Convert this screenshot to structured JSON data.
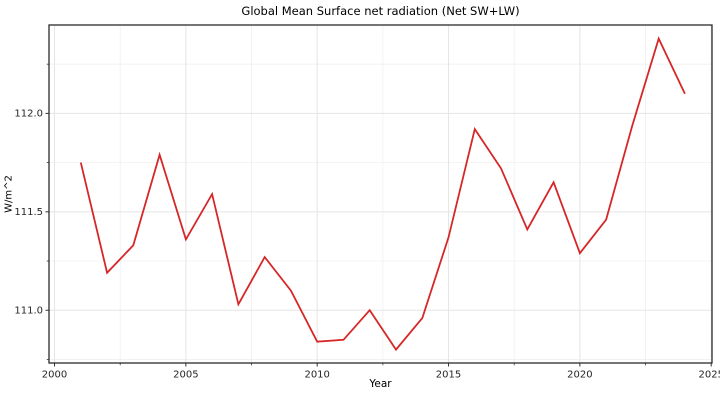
{
  "title": "Global Mean Surface net radiation (Net SW+LW)",
  "chart_data": {
    "type": "line",
    "title": "Global Mean Surface net radiation (Net SW+LW)",
    "xlabel": "Year",
    "ylabel": "W/m^2",
    "x": [
      2001,
      2002,
      2003,
      2004,
      2005,
      2006,
      2007,
      2008,
      2009,
      2010,
      2011,
      2012,
      2013,
      2014,
      2015,
      2016,
      2017,
      2018,
      2019,
      2020,
      2021,
      2022,
      2023,
      2024
    ],
    "values": [
      111.75,
      111.19,
      111.33,
      111.79,
      111.36,
      111.59,
      111.03,
      111.27,
      111.1,
      110.84,
      110.85,
      111.0,
      110.8,
      110.96,
      111.37,
      111.92,
      111.72,
      111.41,
      111.65,
      111.29,
      111.46,
      111.94,
      112.38,
      112.1
    ],
    "xlim": [
      1999.79,
      2025.03
    ],
    "ylim": [
      110.732,
      112.449
    ],
    "x_ticks": {
      "values": [
        2000,
        2005,
        2010,
        2015,
        2020,
        2025
      ],
      "labels": [
        "2000",
        "2005",
        "2010",
        "2015",
        "2020",
        "2025"
      ]
    },
    "x_minor_ticks": [
      2002.5,
      2007.5,
      2012.5,
      2017.5,
      2022.5
    ],
    "y_ticks": {
      "values": [
        111.0,
        111.5,
        112.0
      ],
      "labels": [
        "111.0",
        "111.5",
        "112.0"
      ]
    },
    "y_minor_ticks": [
      110.75,
      111.25,
      111.75,
      112.25
    ],
    "grid": true,
    "legend": "none",
    "line_color": "#d62728",
    "line_width": 1.8,
    "major_grid_color": "#e5e5e5",
    "minor_grid_color": "#f0f0f0",
    "border_color": "#2b2b2b",
    "tick_color": "#333333",
    "tick_label_color": "#262626",
    "background_color": "#ffffff"
  }
}
